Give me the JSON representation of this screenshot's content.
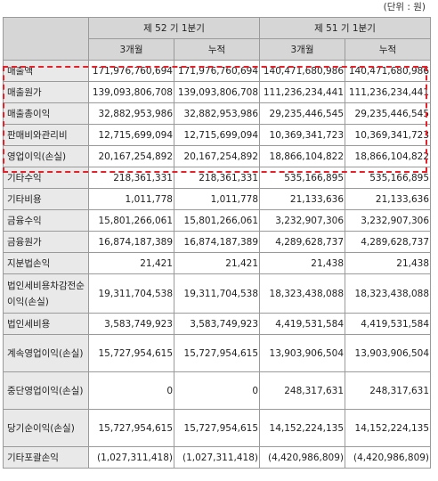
{
  "unit_note": "(단위 : 원)",
  "header": {
    "period52": "제 52 기 1분기",
    "period51": "제 51 기 1분기",
    "sub": [
      "3개월",
      "누적",
      "3개월",
      "누적"
    ]
  },
  "rows": [
    {
      "label": "매출액",
      "v": [
        "171,976,760,694",
        "171,976,760,694",
        "140,471,680,986",
        "140,471,680,986"
      ]
    },
    {
      "label": "매출원가",
      "v": [
        "139,093,806,708",
        "139,093,806,708",
        "111,236,234,441",
        "111,236,234,441"
      ]
    },
    {
      "label": "매출총이익",
      "v": [
        "32,882,953,986",
        "32,882,953,986",
        "29,235,446,545",
        "29,235,446,545"
      ]
    },
    {
      "label": "판매비와관리비",
      "v": [
        "12,715,699,094",
        "12,715,699,094",
        "10,369,341,723",
        "10,369,341,723"
      ]
    },
    {
      "label": "영업이익(손실)",
      "v": [
        "20,167,254,892",
        "20,167,254,892",
        "18,866,104,822",
        "18,866,104,822"
      ]
    },
    {
      "label": "기타수익",
      "v": [
        "218,361,331",
        "218,361,331",
        "535,166,895",
        "535,166,895"
      ]
    },
    {
      "label": "기타비용",
      "v": [
        "1,011,778",
        "1,011,778",
        "21,133,636",
        "21,133,636"
      ]
    },
    {
      "label": "금융수익",
      "v": [
        "15,801,266,061",
        "15,801,266,061",
        "3,232,907,306",
        "3,232,907,306"
      ]
    },
    {
      "label": "금융원가",
      "v": [
        "16,874,187,389",
        "16,874,187,389",
        "4,289,628,737",
        "4,289,628,737"
      ]
    },
    {
      "label": "지분법손익",
      "v": [
        "21,421",
        "21,421",
        "21,438",
        "21,438"
      ]
    },
    {
      "label": "법인세비용차감전순이익(손실)",
      "v": [
        "19,311,704,538",
        "19,311,704,538",
        "18,323,438,088",
        "18,323,438,088"
      ]
    },
    {
      "label": "법인세비용",
      "v": [
        "3,583,749,923",
        "3,583,749,923",
        "4,419,531,584",
        "4,419,531,584"
      ]
    },
    {
      "label": "계속영업이익(손실)",
      "v": [
        "15,727,954,615",
        "15,727,954,615",
        "13,903,906,504",
        "13,903,906,504"
      ]
    },
    {
      "label": "중단영업이익(손실)",
      "v": [
        "0",
        "0",
        "248,317,631",
        "248,317,631"
      ]
    },
    {
      "label": "당기순이익(손실)",
      "v": [
        "15,727,954,615",
        "15,727,954,615",
        "14,152,224,135",
        "14,152,224,135"
      ]
    },
    {
      "label": "기타포괄손익",
      "v": [
        "(1,027,311,418)",
        "(1,027,311,418)",
        "(4,420,986,809)",
        "(4,420,986,809)"
      ]
    }
  ]
}
